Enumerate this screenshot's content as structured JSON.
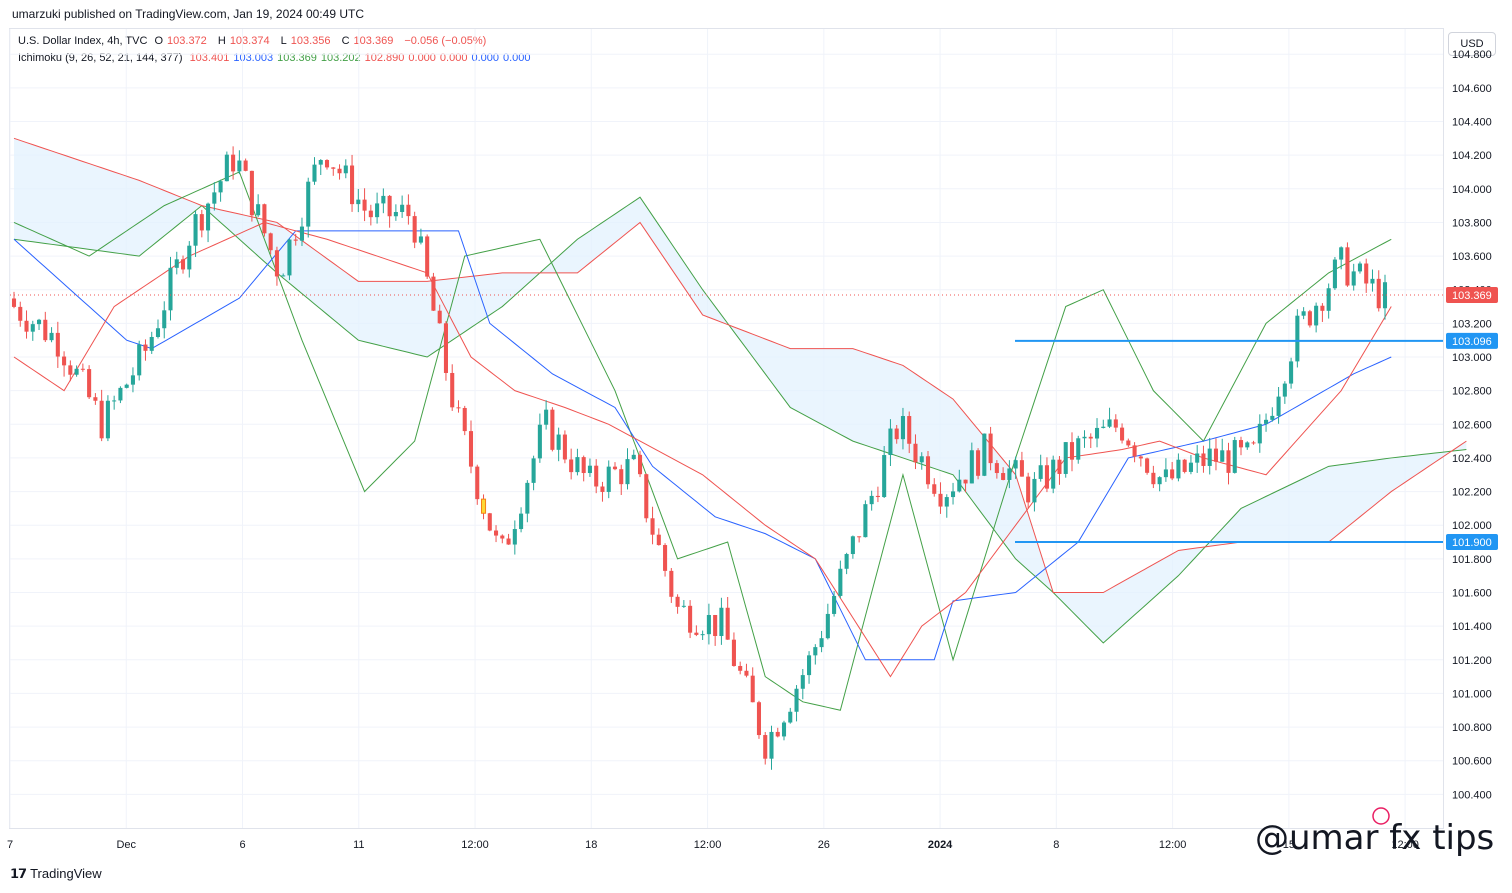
{
  "header": {
    "published": "umarzuki published on TradingView.com, Jan 19, 2024 00:49 UTC"
  },
  "legend": {
    "symbol": "U.S. Dollar Index, 4h, TVC",
    "o_label": "O",
    "o_value": "103.372",
    "h_label": "H",
    "h_value": "103.374",
    "l_label": "L",
    "l_value": "103.356",
    "c_label": "C",
    "c_value": "103.369",
    "change": "−0.056 (−0.05%)",
    "indicator": "Ichimoku (9, 26, 52, 21, 144, 377)",
    "ichimoku_values": [
      "103.401",
      "103.003",
      "103.369",
      "103.202",
      "102.890",
      "0.000",
      "0.000",
      "0.000",
      "0.000"
    ],
    "ichimoku_colors": [
      "#ef5350",
      "#2962ff",
      "#43a047",
      "#43a047",
      "#ef5350",
      "#ef5350",
      "#ef5350",
      "#2962ff",
      "#2962ff"
    ]
  },
  "currency_button": "USD",
  "footer": {
    "logo": "TradingView",
    "watermark": "@umar fx tips"
  },
  "colors": {
    "up": "#26a69a",
    "down": "#ef5350",
    "tenkan": "#ef5350",
    "kijun": "#2962ff",
    "chikou": "#43a047",
    "cloud": "#e3f2fd",
    "hline": "#2196f3",
    "highlight": "#fdd835"
  },
  "chart_data": {
    "type": "candlestick",
    "title": "U.S. Dollar Index, 4h, TVC",
    "ylim": [
      100.2,
      104.95
    ],
    "y_ticks": [
      "100.400",
      "100.600",
      "100.800",
      "101.000",
      "101.200",
      "101.400",
      "101.600",
      "101.800",
      "102.000",
      "102.200",
      "102.400",
      "102.600",
      "102.800",
      "103.000",
      "103.200",
      "103.400",
      "103.600",
      "103.800",
      "104.000",
      "104.200",
      "104.400",
      "104.600",
      "104.800"
    ],
    "x_ticks": [
      "7",
      "Dec",
      "6",
      "11",
      "12:00",
      "18",
      "12:00",
      "26",
      "2024",
      "8",
      "12:00",
      "15",
      "12:00"
    ],
    "last_price": "103.369",
    "horizontal_lines": [
      {
        "value": 103.096,
        "label": "103.096"
      },
      {
        "value": 101.9,
        "label": "101.900"
      }
    ],
    "anchors": [
      103.3,
      103.1,
      102.6,
      103.05,
      103.75,
      104.2,
      103.5,
      104.25,
      103.85,
      103.85,
      102.65,
      101.8,
      102.6,
      102.25,
      102.35,
      101.5,
      101.4,
      100.7,
      101.2,
      101.9,
      102.6,
      102.2,
      102.45,
      102.2,
      102.45,
      102.6,
      102.25,
      102.4,
      102.4,
      103.15,
      103.55,
      103.35
    ],
    "candle_count": 220,
    "highlight_candle_index": 75,
    "tenkan_x": [
      0,
      8,
      16,
      28,
      40,
      50,
      66,
      73,
      80,
      88,
      95,
      105,
      110,
      120,
      128,
      140,
      145,
      152,
      160,
      168,
      177,
      183,
      190,
      200,
      212,
      220
    ],
    "tenkan_y": [
      103.0,
      102.8,
      103.3,
      103.6,
      103.8,
      103.7,
      103.5,
      103.0,
      102.8,
      102.7,
      102.6,
      102.4,
      102.3,
      102.0,
      101.8,
      101.1,
      101.4,
      101.6,
      102.0,
      102.4,
      102.45,
      102.5,
      102.4,
      102.3,
      102.8,
      103.3
    ],
    "kijun_x": [
      0,
      18,
      22,
      36,
      45,
      60,
      71,
      76,
      86,
      96,
      102,
      112,
      120,
      128,
      136,
      147,
      150,
      160,
      170,
      178,
      190,
      200,
      214,
      220
    ],
    "kijun_y": [
      103.7,
      103.1,
      103.05,
      103.35,
      103.75,
      103.75,
      103.75,
      103.2,
      102.9,
      102.7,
      102.35,
      102.05,
      101.95,
      101.8,
      101.2,
      101.2,
      101.55,
      101.6,
      101.9,
      102.4,
      102.5,
      102.6,
      102.9,
      103.0
    ],
    "chikou_x": [
      0,
      12,
      24,
      36,
      46,
      56,
      64,
      72,
      84,
      96,
      106,
      114,
      120,
      126,
      132,
      142,
      150,
      160,
      168,
      174,
      182,
      190,
      200,
      210,
      220
    ],
    "chikou_y": [
      103.8,
      103.6,
      103.9,
      104.1,
      103.1,
      102.2,
      102.5,
      103.6,
      103.7,
      102.8,
      101.8,
      101.9,
      101.1,
      100.95,
      100.9,
      102.3,
      101.2,
      102.4,
      103.3,
      103.4,
      102.8,
      102.5,
      103.2,
      103.5,
      103.7
    ],
    "span_x": [
      0,
      20,
      30,
      42,
      55,
      66,
      78,
      90,
      100,
      110,
      124,
      134,
      142,
      150,
      160,
      166,
      174,
      186,
      196,
      210,
      220,
      232
    ],
    "span_a_y": [
      103.7,
      103.6,
      103.9,
      103.5,
      103.1,
      103.0,
      103.3,
      103.7,
      103.95,
      103.4,
      102.7,
      102.5,
      102.4,
      102.3,
      101.8,
      101.6,
      101.3,
      101.7,
      102.1,
      102.35,
      102.4,
      102.45
    ],
    "span_b_y": [
      104.3,
      104.05,
      103.9,
      103.8,
      103.45,
      103.45,
      103.5,
      103.5,
      103.8,
      103.25,
      103.05,
      103.05,
      102.95,
      102.75,
      102.3,
      101.6,
      101.6,
      101.85,
      101.9,
      101.9,
      102.2,
      102.5
    ]
  }
}
